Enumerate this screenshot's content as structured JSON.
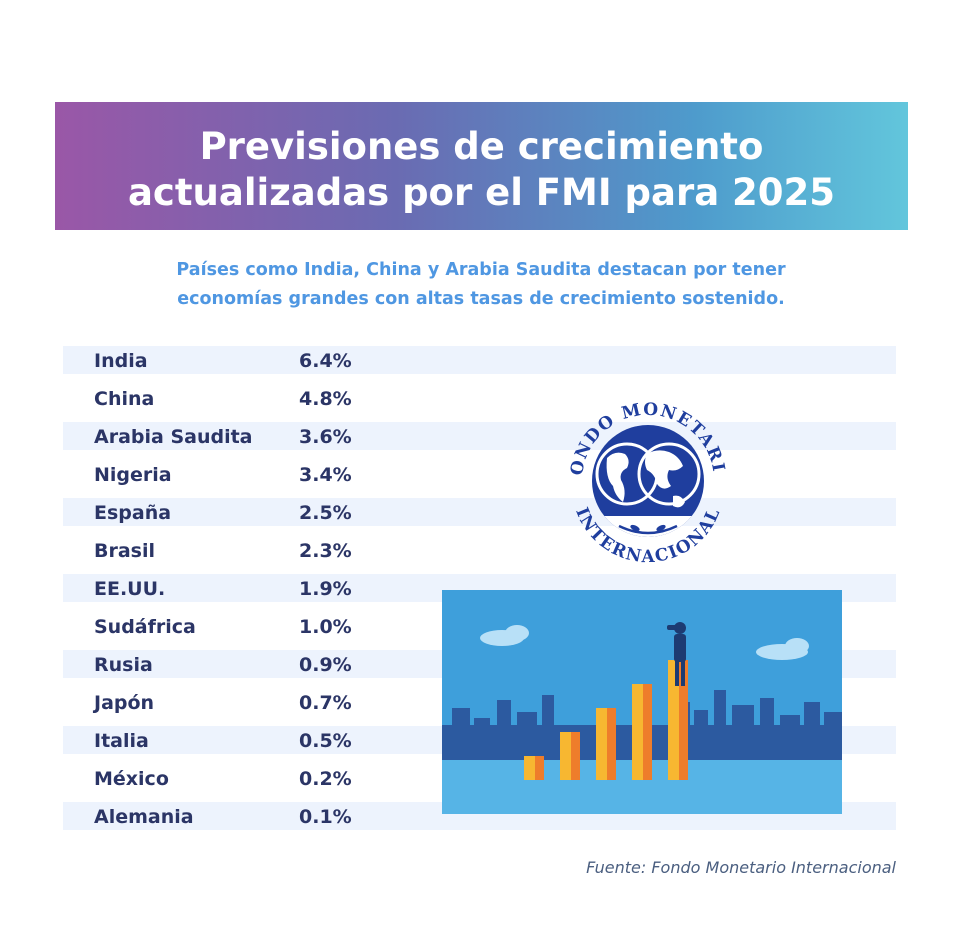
{
  "header": {
    "title_line1": "Previsiones de crecimiento",
    "title_line2": "actualizadas por el FMI para 2025"
  },
  "subtitle": {
    "line1": "Países como India, China y Arabia Saudita destacan por tener",
    "line2": "economías grandes con altas tasas de crecimiento sostenido."
  },
  "chart_data": {
    "type": "table",
    "columns": [
      "",
      ""
    ],
    "rows": [
      {
        "country": "India",
        "value": "6.4%"
      },
      {
        "country": "China",
        "value": "4.8%"
      },
      {
        "country": "Arabia Saudita",
        "value": "3.6%"
      },
      {
        "country": "Nigeria",
        "value": "3.4%"
      },
      {
        "country": "España",
        "value": "2.5%"
      },
      {
        "country": "Brasil",
        "value": "2.3%"
      },
      {
        "country": "EE.UU.",
        "value": "1.9%"
      },
      {
        "country": "Sudáfrica",
        "value": "1.0%"
      },
      {
        "country": "Rusia",
        "value": "0.9%"
      },
      {
        "country": "Japón",
        "value": "0.7%"
      },
      {
        "country": "Italia",
        "value": "0.5%"
      },
      {
        "country": "México",
        "value": "0.2%"
      },
      {
        "country": "Alemania",
        "value": "0.1%"
      }
    ]
  },
  "logo": {
    "text_top": "FONDO MONETARIO",
    "text_bottom": "INTERNACIONAL",
    "color": "#1f3e9e"
  },
  "illustration": {
    "icon": "growth-bars-with-lookout-person",
    "bar_levels": [
      0.15,
      0.3,
      0.45,
      0.6,
      0.75
    ]
  },
  "footer": {
    "source": "Fuente: Fondo Monetario Internacional"
  },
  "colors": {
    "banner_start": "#9a57a7",
    "banner_end": "#62c6dc",
    "subtitle": "#4f97e2",
    "table_text": "#2b3566",
    "row_band": "#edf3fd",
    "bar_orange": "#ee7d2b",
    "bar_yellow": "#f7b731",
    "sky": "#3e9fdb"
  }
}
